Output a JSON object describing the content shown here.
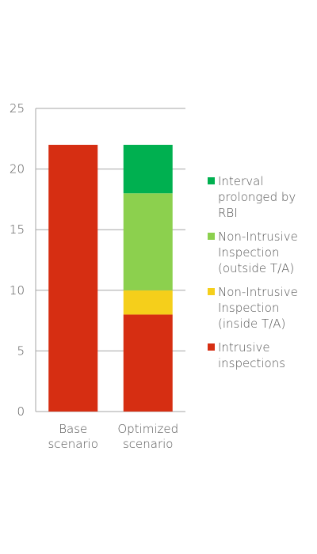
{
  "chart_data": {
    "type": "bar",
    "stacked": true,
    "categories": [
      [
        "Base",
        "scenario"
      ],
      [
        "Optimized",
        "scenario"
      ]
    ],
    "series": [
      {
        "name": "Intrusive inspections",
        "color": "#d62e12",
        "values": [
          22,
          8
        ]
      },
      {
        "name": "Non-Intrusive Inspection (inside T/A)",
        "color": "#f5cf1b",
        "values": [
          0,
          2
        ]
      },
      {
        "name": "Non-Intrusive Inspection (outside T/A)",
        "color": "#8cd04e",
        "values": [
          0,
          8
        ]
      },
      {
        "name": "Interval prolonged by RBI",
        "color": "#00b050",
        "values": [
          0,
          4
        ]
      }
    ],
    "ylim": [
      0,
      25
    ],
    "yticks": [
      0,
      5,
      10,
      15,
      20,
      25
    ],
    "grid": true,
    "legend_position": "right",
    "title": "",
    "xlabel": "",
    "ylabel": ""
  },
  "legend": [
    {
      "lines": [
        "Interval",
        "prolonged by",
        "RBI"
      ],
      "color": "#00b050"
    },
    {
      "lines": [
        "Non-Intrusive",
        "Inspection",
        "(outside T/A)"
      ],
      "color": "#8cd04e"
    },
    {
      "lines": [
        "Non-Intrusive",
        "Inspection",
        "(inside T/A)"
      ],
      "color": "#f5cf1b"
    },
    {
      "lines": [
        "Intrusive",
        "inspections"
      ],
      "color": "#d62e12"
    }
  ]
}
